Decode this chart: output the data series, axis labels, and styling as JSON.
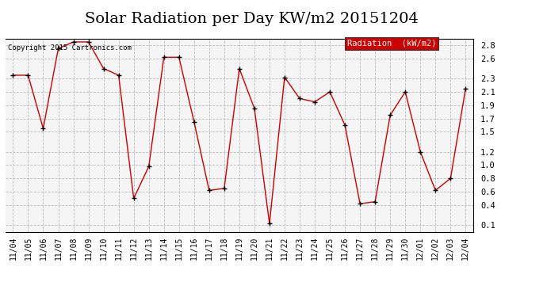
{
  "title": "Solar Radiation per Day KW/m2 20151204",
  "copyright": "Copyright 2015 Cartronics.com",
  "legend_label": "Radiation  (kW/m2)",
  "background_color": "#ffffff",
  "plot_bg_color": "#f5f5f5",
  "grid_color": "#bbbbbb",
  "line_color": "#cc0000",
  "marker_color": "#000000",
  "legend_bg": "#cc0000",
  "legend_text_color": "#ffffff",
  "dates": [
    "11/04",
    "11/05",
    "11/06",
    "11/07",
    "11/08",
    "11/09",
    "11/10",
    "11/11",
    "11/12",
    "11/13",
    "11/14",
    "11/15",
    "11/16",
    "11/17",
    "11/18",
    "11/19",
    "11/20",
    "11/21",
    "11/22",
    "11/23",
    "11/24",
    "11/25",
    "11/26",
    "11/27",
    "11/28",
    "11/29",
    "11/30",
    "12/01",
    "12/02",
    "12/03",
    "12/04"
  ],
  "values": [
    2.35,
    2.35,
    1.55,
    2.75,
    2.85,
    2.85,
    2.45,
    2.35,
    0.5,
    0.98,
    2.62,
    2.62,
    1.65,
    0.62,
    0.65,
    2.45,
    1.85,
    0.12,
    2.32,
    2.0,
    1.95,
    2.1,
    1.6,
    0.42,
    0.45,
    1.75,
    2.1,
    1.2,
    0.62,
    0.8,
    2.15
  ],
  "ylim_min": 0.0,
  "ylim_max": 2.9,
  "yticks": [
    0.1,
    0.4,
    0.6,
    0.8,
    1.0,
    1.2,
    1.5,
    1.7,
    1.9,
    2.1,
    2.3,
    2.6,
    2.8
  ],
  "title_fontsize": 14,
  "tick_fontsize": 7,
  "legend_fontsize": 7.5
}
